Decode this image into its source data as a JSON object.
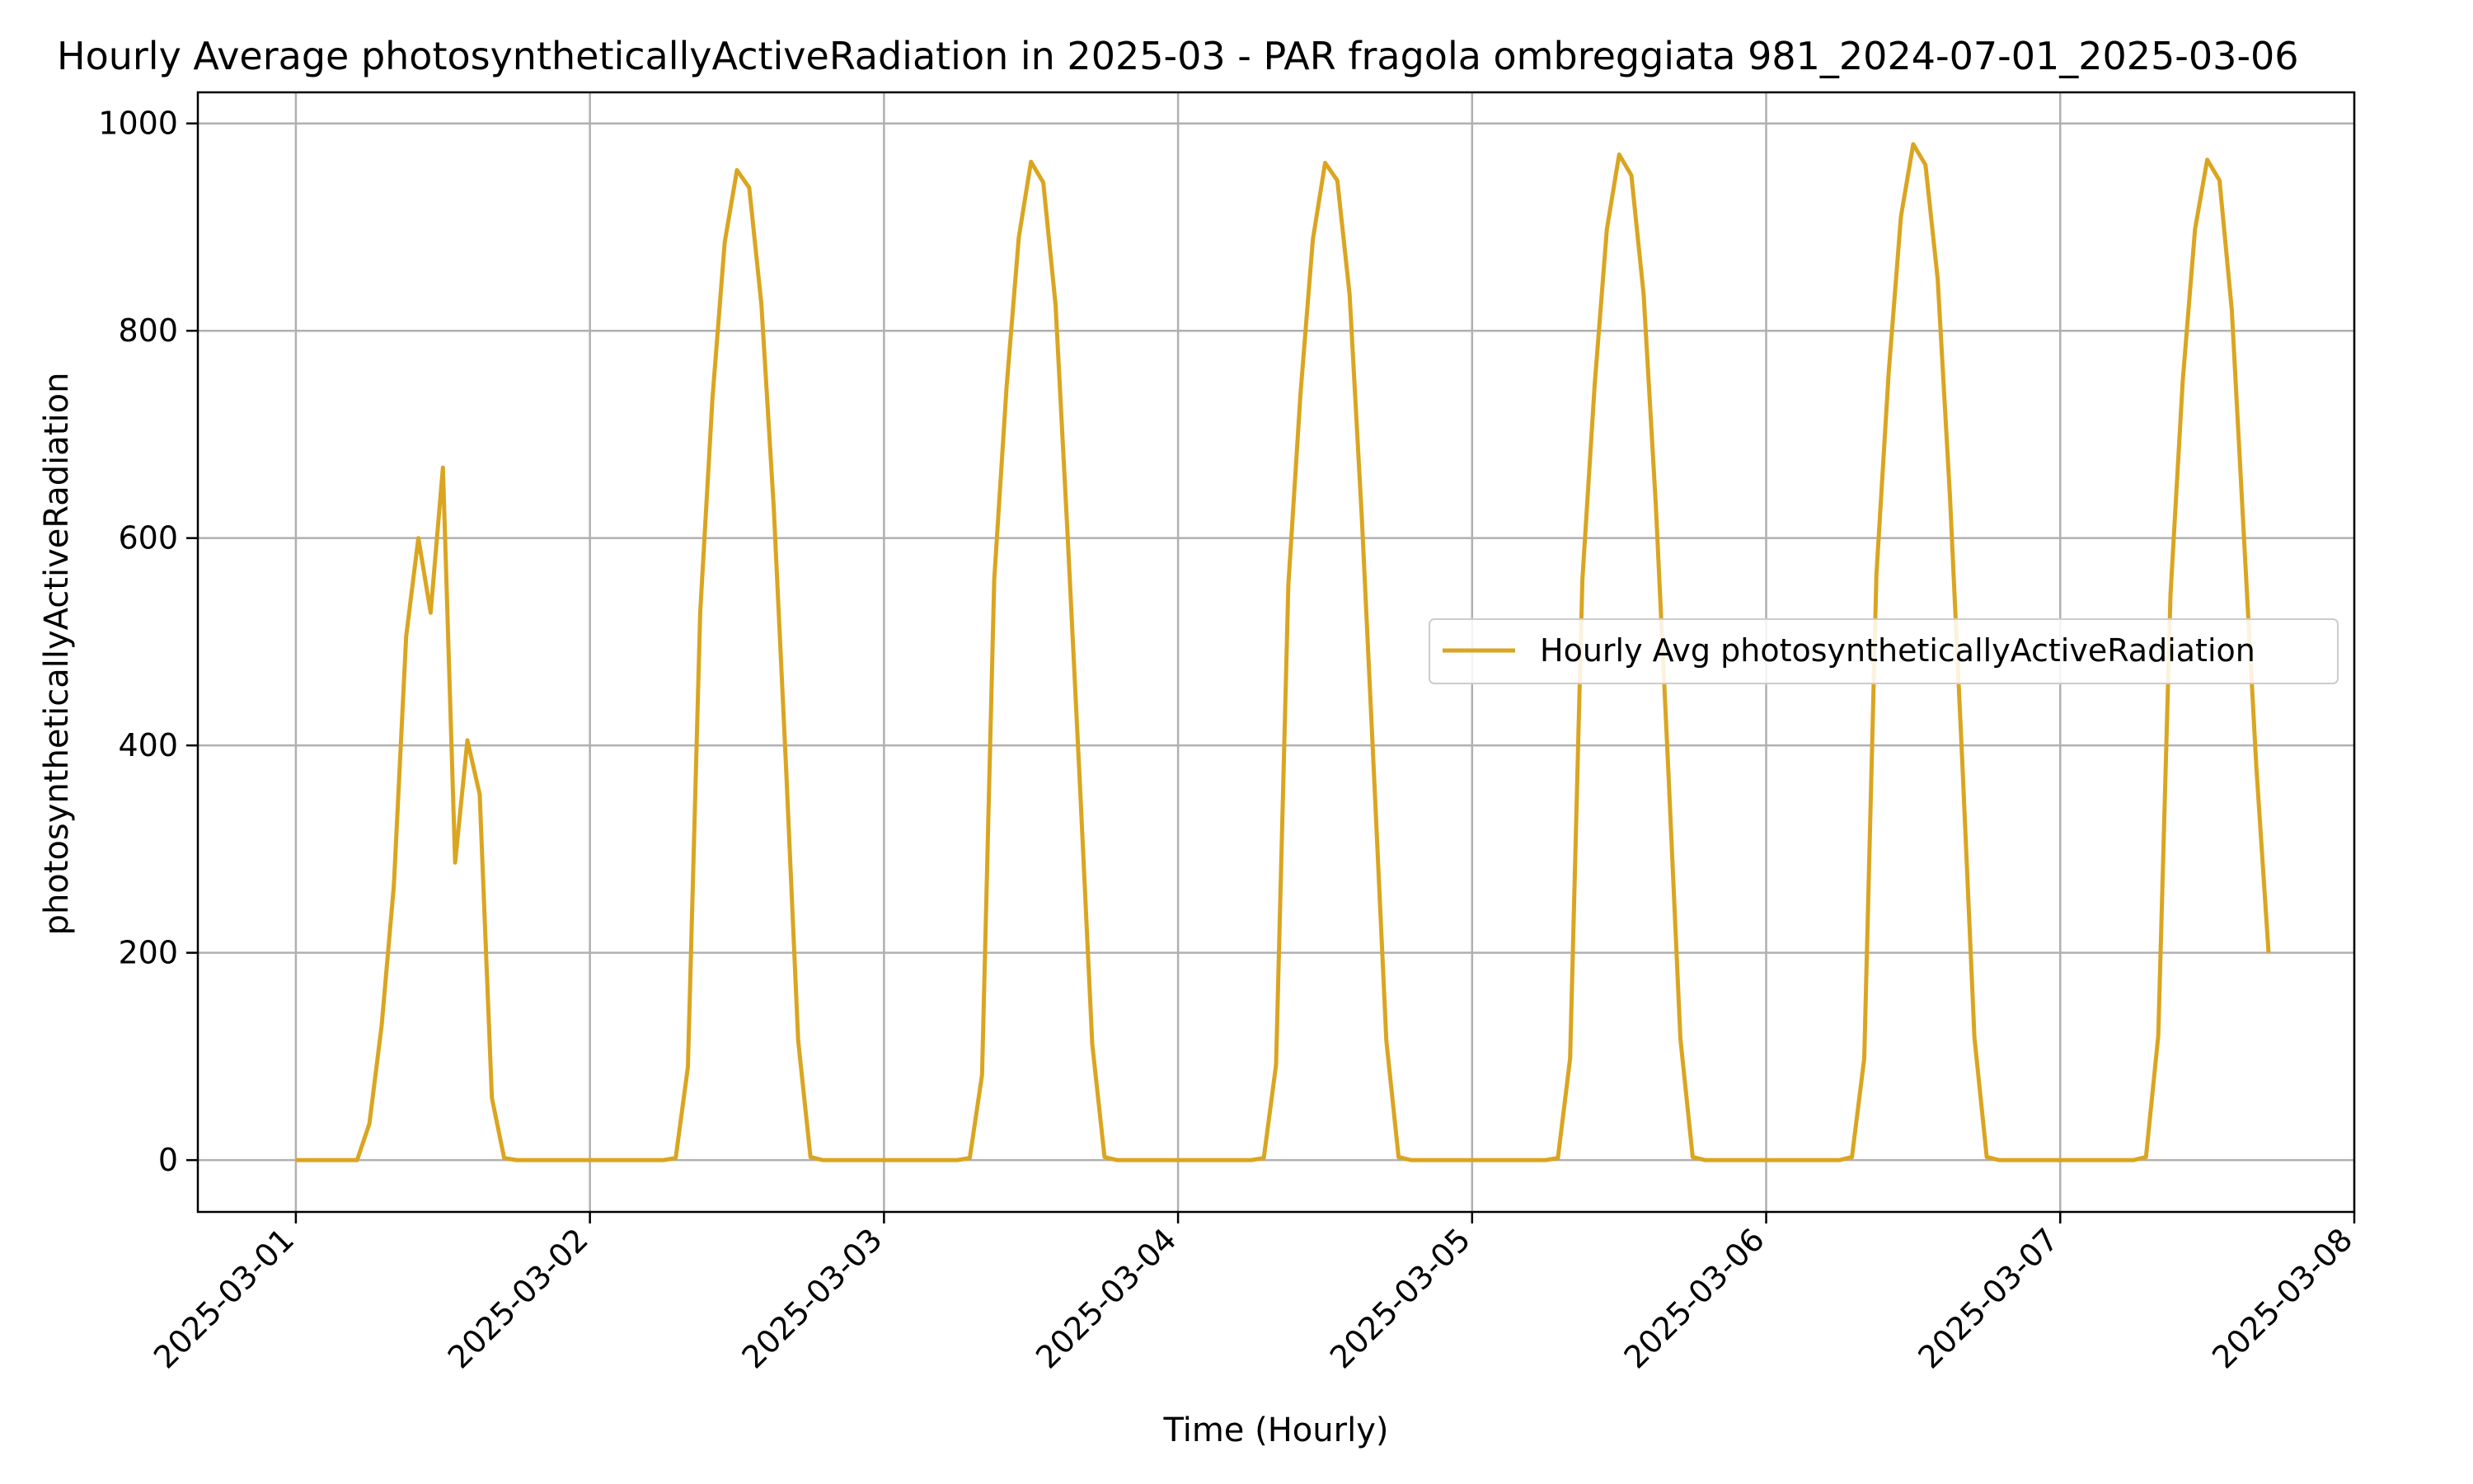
{
  "chart_data": {
    "type": "line",
    "title": "Hourly Average photosyntheticallyActiveRadiation in 2025-03 - PAR fragola ombreggiata 981_2024-07-01_2025-03-06",
    "xlabel": "Time (Hourly)",
    "ylabel": "photosyntheticallyActiveRadiation",
    "xlim": [
      "2025-02-28T16:00",
      "2025-03-08T00:00"
    ],
    "ylim": [
      -50,
      1030
    ],
    "yticks": [
      0,
      200,
      400,
      600,
      800,
      1000
    ],
    "xticks": [
      "2025-03-01",
      "2025-03-02",
      "2025-03-03",
      "2025-03-04",
      "2025-03-05",
      "2025-03-06",
      "2025-03-07",
      "2025-03-08"
    ],
    "grid": true,
    "legend_position": "center-right",
    "series": [
      {
        "name": "Hourly Avg photosyntheticallyActiveRadiation",
        "color": "#DAA520",
        "start": "2025-03-01T00:00",
        "interval": "1 hour",
        "values": [
          0,
          0,
          0,
          0,
          0,
          0,
          35,
          130,
          265,
          505,
          600,
          528,
          668,
          287,
          405,
          353,
          60,
          2,
          0,
          0,
          0,
          0,
          0,
          0,
          0,
          0,
          0,
          0,
          0,
          0,
          0,
          2,
          90,
          528,
          735,
          885,
          955,
          938,
          825,
          630,
          380,
          115,
          3,
          0,
          0,
          0,
          0,
          0,
          0,
          0,
          0,
          0,
          0,
          0,
          0,
          2,
          82,
          560,
          745,
          890,
          963,
          943,
          825,
          600,
          360,
          112,
          3,
          0,
          0,
          0,
          0,
          0,
          0,
          0,
          0,
          0,
          0,
          0,
          0,
          2,
          92,
          555,
          740,
          888,
          962,
          945,
          835,
          620,
          370,
          115,
          3,
          0,
          0,
          0,
          0,
          0,
          0,
          0,
          0,
          0,
          0,
          0,
          0,
          2,
          98,
          560,
          748,
          898,
          970,
          950,
          835,
          630,
          380,
          117,
          3,
          0,
          0,
          0,
          0,
          0,
          0,
          0,
          0,
          0,
          0,
          0,
          0,
          3,
          98,
          565,
          760,
          910,
          980,
          960,
          850,
          640,
          385,
          118,
          3,
          0,
          0,
          0,
          0,
          0,
          0,
          0,
          0,
          0,
          0,
          0,
          0,
          3,
          120,
          545,
          752,
          898,
          965,
          945,
          820,
          600,
          380,
          200
        ]
      }
    ]
  }
}
